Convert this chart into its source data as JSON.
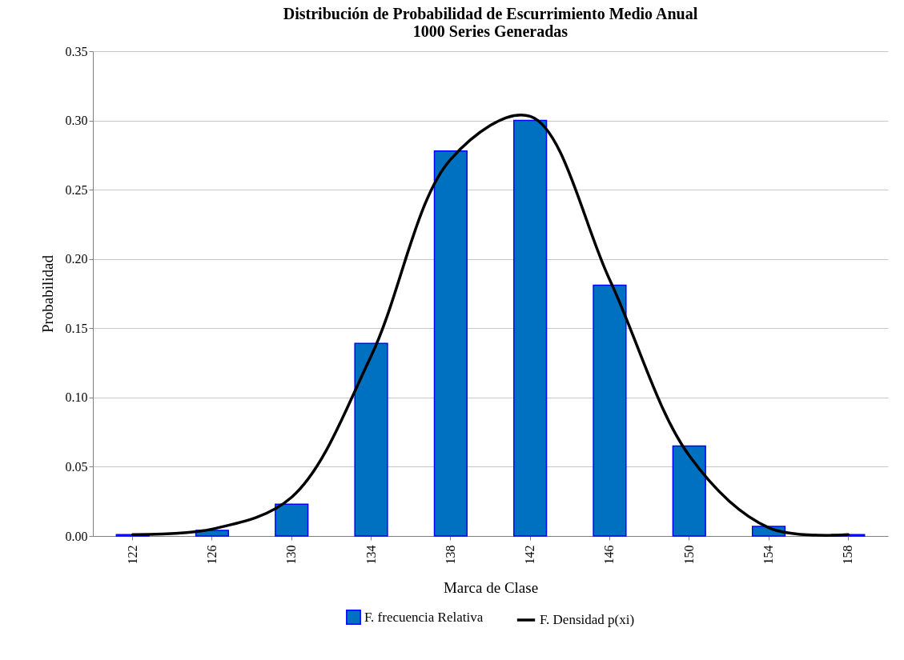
{
  "chart_data": {
    "type": "bar",
    "title": "Distribución de Probabilidad de Escurrimiento Medio Anual",
    "subtitle": "1000 Series Generadas",
    "xlabel": "Marca de Clase",
    "ylabel": "Probabilidad",
    "categories": [
      "122",
      "126",
      "130",
      "134",
      "138",
      "142",
      "146",
      "150",
      "154",
      "158"
    ],
    "series": [
      {
        "name": "F. frecuencia Relativa",
        "type": "bar",
        "color": "#0070c0",
        "values": [
          0.001,
          0.004,
          0.023,
          0.139,
          0.278,
          0.3,
          0.181,
          0.065,
          0.007,
          0.001
        ]
      },
      {
        "name": "F. Densidad p(xi)",
        "type": "line",
        "color": "#000000",
        "values": [
          0.001,
          0.005,
          0.028,
          0.13,
          0.272,
          0.303,
          0.185,
          0.058,
          0.006,
          0.001
        ]
      }
    ],
    "ylim": [
      0,
      0.35
    ],
    "yticks": [
      {
        "value": 0,
        "label": "0.00"
      },
      0.05,
      {
        "value": 0.1,
        "label": "0.10"
      },
      0.15,
      {
        "value": 0.2,
        "label": "0.20"
      },
      0.25,
      {
        "value": 0.3,
        "label": "0.30"
      },
      0.35
    ],
    "grid": "y",
    "legend": "bottom",
    "marker": "none",
    "line_style": "solid"
  }
}
